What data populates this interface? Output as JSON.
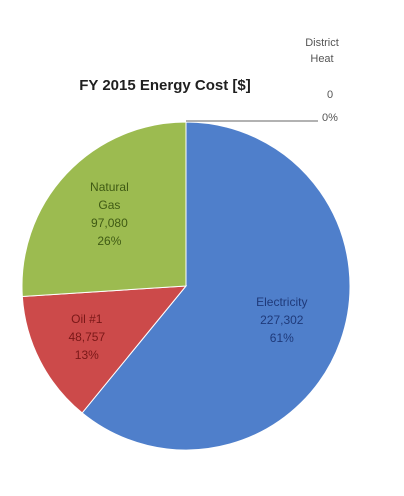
{
  "chart_data": {
    "type": "pie",
    "title": "FY 2015 Energy Cost [$]",
    "slices": [
      {
        "name": "Electricity",
        "value": 227302,
        "value_label": "227,302",
        "percent_label": "61%",
        "color": "#4f7fcb",
        "text_color": "#1f3a7a"
      },
      {
        "name": "Oil #1",
        "value": 48757,
        "value_label": "48,757",
        "percent_label": "13%",
        "color": "#cc4a4a",
        "text_color": "#7a1818"
      },
      {
        "name": "Natural Gas",
        "value": 97080,
        "value_label": "97,080",
        "percent_label": "26%",
        "color": "#9cbb50",
        "text_color": "#3f5a14"
      },
      {
        "name": "District Heat",
        "value": 0,
        "value_label": "0",
        "percent_label": "0%",
        "color": "#7f6a9f",
        "text_color": "#555555"
      }
    ],
    "legend": "none",
    "data_labels": "inside",
    "start_angle": "12 o'clock",
    "direction": "clockwise"
  }
}
